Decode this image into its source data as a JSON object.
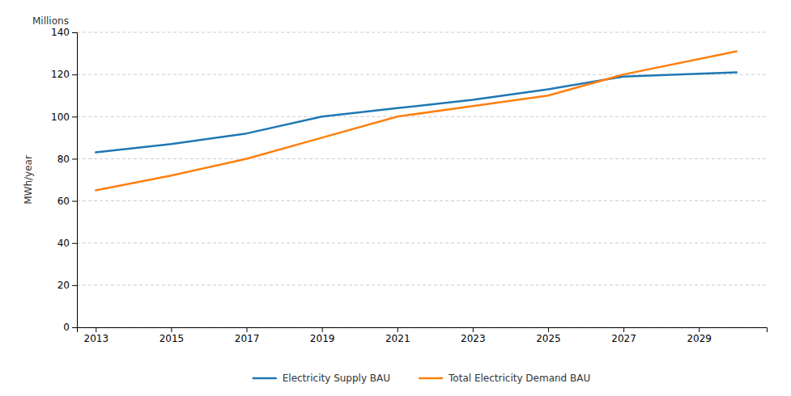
{
  "chart_data": {
    "type": "line",
    "x": [
      2013,
      2015,
      2017,
      2019,
      2021,
      2023,
      2025,
      2027,
      2030
    ],
    "series": [
      {
        "name": "Electricity Supply BAU",
        "values": [
          83,
          87,
          92,
          100,
          104,
          108,
          113,
          119,
          121
        ]
      },
      {
        "name": "Total Electricity Demand BAU",
        "values": [
          65,
          72,
          80,
          90,
          100,
          105,
          110,
          120,
          131
        ]
      }
    ],
    "ylabel": "MWh/year",
    "annotations": [
      "Millions"
    ],
    "xlim": [
      2012.5,
      2030.8
    ],
    "ylim": [
      0,
      140
    ],
    "xticks": [
      2013,
      2015,
      2017,
      2019,
      2021,
      2023,
      2025,
      2027,
      2029
    ],
    "yticks": [
      0,
      20,
      40,
      60,
      80,
      100,
      120,
      140
    ],
    "grid": "y",
    "legend": "bottom"
  }
}
